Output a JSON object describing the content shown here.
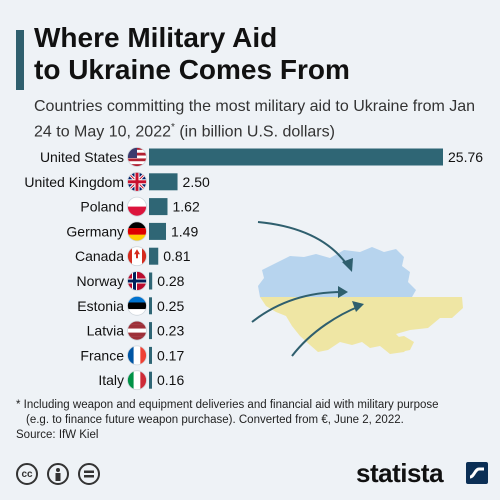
{
  "header": {
    "title": "Where Military Aid\nto Ukraine Comes From",
    "subtitle_main": "Countries committing the most military aid to Ukraine from Jan 24 to May 10, 2022",
    "subtitle_marker": "*",
    "subtitle_unit": " (in billion U.S. dollars)"
  },
  "chart_data": {
    "type": "bar",
    "orientation": "horizontal",
    "categories": [
      "United States",
      "United Kingdom",
      "Poland",
      "Germany",
      "Canada",
      "Norway",
      "Estonia",
      "Latvia",
      "France",
      "Italy"
    ],
    "values": [
      25.76,
      2.5,
      1.62,
      1.49,
      0.81,
      0.28,
      0.25,
      0.23,
      0.17,
      0.16
    ],
    "value_labels": [
      "25.76",
      "2.50",
      "1.62",
      "1.49",
      "0.81",
      "0.28",
      "0.25",
      "0.23",
      "0.17",
      "0.16"
    ],
    "flag_icons": [
      "flag-us-icon",
      "flag-uk-icon",
      "flag-poland-icon",
      "flag-germany-icon",
      "flag-canada-icon",
      "flag-norway-icon",
      "flag-estonia-icon",
      "flag-latvia-icon",
      "flag-france-icon",
      "flag-italy-icon"
    ],
    "bar_color": "#2f6675",
    "grid": false,
    "xlim": [
      0,
      25.76
    ]
  },
  "illustration": {
    "name": "ukraine-map",
    "colors": {
      "blue": "#b7d4ee",
      "yellow": "#efe6a4",
      "arrow": "#2f5f6e"
    }
  },
  "footer": {
    "footnote_line1": "* Including weapon and equipment deliveries and financial aid with military purpose",
    "footnote_line2": "(e.g. to finance future weapon purchase). Converted from €, June 2, 2022.",
    "source": "Source: IfW Kiel",
    "logo": "statista",
    "license_icons": [
      "cc-icon",
      "attribution-icon",
      "no-derivatives-icon"
    ]
  }
}
